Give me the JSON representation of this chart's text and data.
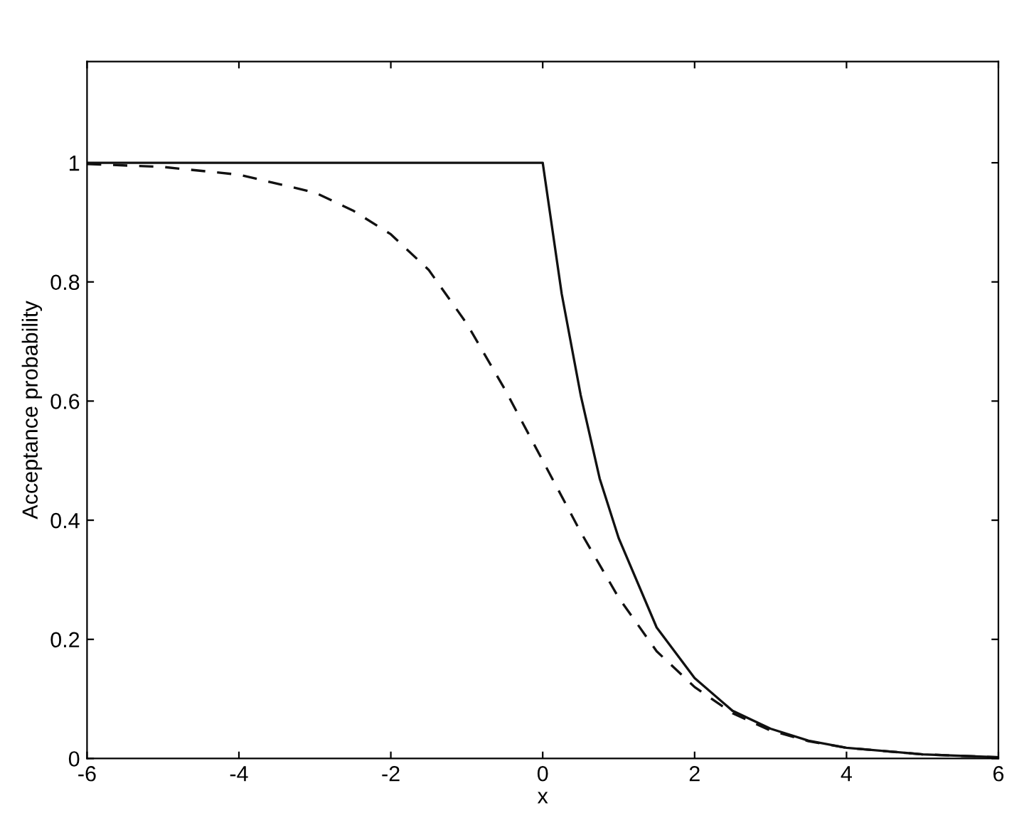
{
  "chart_data": {
    "type": "line",
    "xlabel": "x",
    "ylabel": "Acceptance probability",
    "xlim": [
      -6,
      6
    ],
    "xticks": [
      -6,
      -4,
      -2,
      0,
      2,
      4,
      6
    ],
    "ylim": [
      0,
      1.17
    ],
    "yticks": [
      0,
      0.2,
      0.4,
      0.6,
      0.8,
      1
    ],
    "grid": false,
    "legend": false,
    "series": [
      {
        "color": "#111111",
        "line_style": "solid",
        "x": [
          -6,
          -3,
          0,
          0.25,
          0.5,
          0.75,
          1,
          1.5,
          2,
          2.5,
          3,
          3.5,
          4,
          5,
          6
        ],
        "values": [
          1,
          1,
          1,
          0.78,
          0.61,
          0.47,
          0.37,
          0.22,
          0.135,
          0.08,
          0.05,
          0.03,
          0.018,
          0.007,
          0.002
        ]
      },
      {
        "color": "#111111",
        "line_style": "dashed",
        "x": [
          -6,
          -5,
          -4,
          -3,
          -2.5,
          -2,
          -1.5,
          -1,
          -0.5,
          0,
          0.5,
          1,
          1.5,
          2,
          2.5,
          3,
          3.5,
          4,
          5,
          6
        ],
        "values": [
          0.998,
          0.993,
          0.98,
          0.95,
          0.92,
          0.88,
          0.82,
          0.73,
          0.62,
          0.5,
          0.38,
          0.27,
          0.18,
          0.12,
          0.076,
          0.047,
          0.029,
          0.018,
          0.007,
          0.002
        ]
      }
    ]
  }
}
